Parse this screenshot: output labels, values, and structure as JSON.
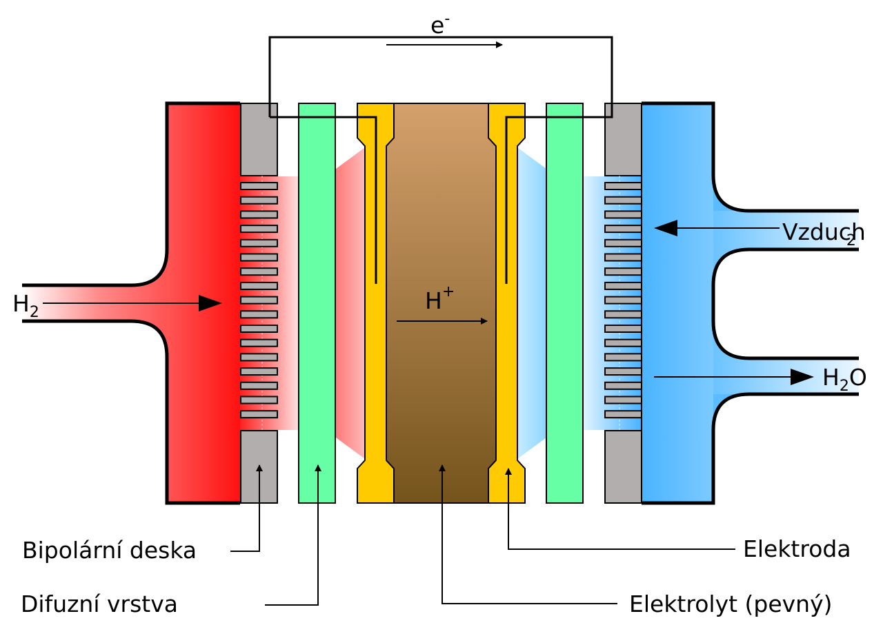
{
  "labels": {
    "electron": "e",
    "electron_charge": "-",
    "proton": "H",
    "proton_charge": "+",
    "hydrogen": "H",
    "hydrogen_sub": "2",
    "air": "Vzduch",
    "air_sub": "2",
    "water_h": "H",
    "water_sub": "2",
    "water_o": "O"
  },
  "callouts": {
    "bipolar_plate": "Bipolární deska",
    "diffusion_layer": "Difuzní vrstva",
    "electrode": "Elektroda",
    "electrolyte": "Elektrolyt (pevný)"
  },
  "colors": {
    "hydrogen_side": "#ff1a1a",
    "air_side": "#47b6ff",
    "bipolar_plate": "#b2aeae",
    "diffusion_layer": "#66ffa5",
    "electrode": "#fdcb00",
    "electrolyte_top": "#d4a06c",
    "electrolyte_bottom": "#75541c"
  }
}
